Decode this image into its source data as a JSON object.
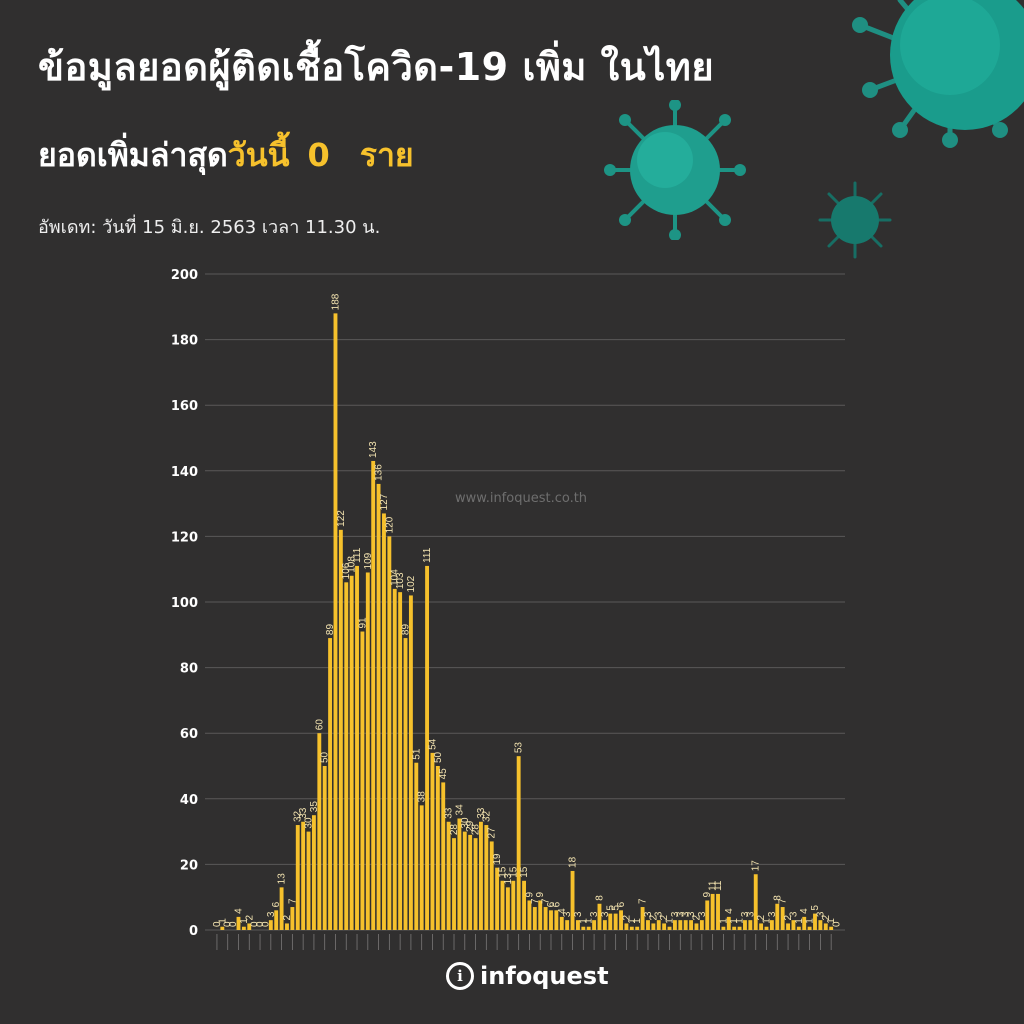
{
  "header": {
    "title": "ข้อมูลยอดผู้ติดเชื้อโควิด-19 เพิ่ม ในไทย",
    "subtitle_prefix": "ยอดเพิ่มล่าสุด",
    "subtitle_highlight": "วันนี้",
    "today_value": "0",
    "unit": "ราย",
    "update": "อัพเดท: วันที่  15 มิ.ย. 2563 เวลา 11.30 น."
  },
  "watermark": "www.infoquest.co.th",
  "logo": {
    "mark": "i",
    "text": "infoquest"
  },
  "colors": {
    "background": "#302f2f",
    "bar": "#f6c12c",
    "accent": "#f6c12c",
    "virus": "#1f9e8e"
  },
  "icons": [
    "virus-icon"
  ],
  "chart_data": {
    "type": "bar",
    "ylim": [
      0,
      200
    ],
    "yticks": [
      0,
      20,
      40,
      60,
      80,
      100,
      120,
      140,
      160,
      180,
      200
    ],
    "grid": true,
    "values": [
      0,
      1,
      0,
      0,
      4,
      1,
      2,
      0,
      0,
      0,
      3,
      6,
      13,
      2,
      7,
      32,
      33,
      30,
      35,
      60,
      50,
      89,
      188,
      122,
      106,
      108,
      111,
      91,
      109,
      143,
      136,
      127,
      120,
      104,
      103,
      89,
      102,
      51,
      38,
      111,
      54,
      50,
      45,
      33,
      28,
      34,
      30,
      29,
      28,
      33,
      32,
      27,
      19,
      15,
      13,
      15,
      53,
      15,
      9,
      7,
      9,
      7,
      6,
      6,
      4,
      3,
      18,
      3,
      1,
      1,
      3,
      8,
      3,
      5,
      5,
      6,
      2,
      1,
      1,
      7,
      3,
      2,
      3,
      2,
      1,
      3,
      3,
      3,
      3,
      2,
      3,
      9,
      11,
      11,
      1,
      4,
      1,
      1,
      3,
      3,
      17,
      2,
      1,
      3,
      8,
      7,
      2,
      3,
      1,
      4,
      1,
      5,
      3,
      2,
      1,
      0
    ],
    "labels": [
      "0",
      "1",
      "0",
      "0",
      "4",
      "1",
      "2",
      "0",
      "0",
      "0",
      "3",
      "6",
      "13",
      "2",
      "7",
      "32",
      "33",
      "30",
      "35",
      "60",
      "50",
      "89",
      "188",
      "122",
      "106",
      "108",
      "111",
      "91",
      "109",
      "143",
      "136",
      "127",
      "120",
      "104",
      "103",
      "89",
      "102",
      "51",
      "38",
      "111",
      "54",
      "50",
      "45",
      "33",
      "28",
      "34",
      "30",
      "29",
      "28",
      "33",
      "32",
      "27",
      "19",
      "15",
      "13",
      "15",
      "53",
      "15",
      "9",
      "7",
      "9",
      "7",
      "6",
      "6",
      "4",
      "3",
      "18",
      "3",
      "1",
      "1",
      "3",
      "8",
      "3",
      "5",
      "5",
      "6",
      "2",
      "1",
      "1",
      "7",
      "3",
      "2",
      "3",
      "2",
      "1",
      "3",
      "3",
      "3",
      "3",
      "2",
      "3",
      "9",
      "11",
      "11",
      "1",
      "4",
      "1",
      "1",
      "3",
      "3",
      "17",
      "2",
      "1",
      "3",
      "8",
      "7",
      "2",
      "3",
      "1",
      "4",
      "1",
      "5",
      "3",
      "2",
      "1",
      "0"
    ]
  }
}
